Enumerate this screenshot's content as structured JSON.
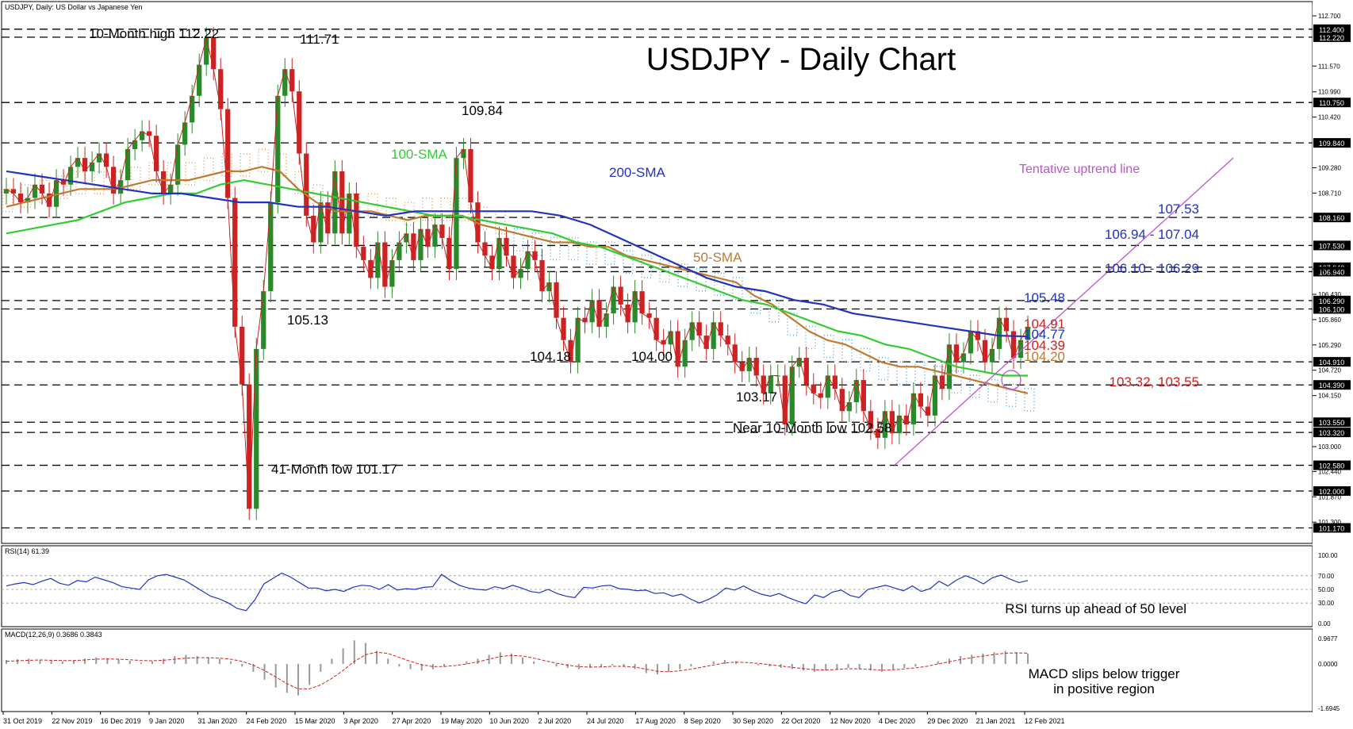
{
  "chart_data": {
    "type": "line",
    "header": {
      "main": "USDJPY, Daily:  US Dollar vs Japanese Yen",
      "rsi": "RSI(14) 61.39",
      "macd": "MACD(12,26,9) 0.3686 0.3843"
    },
    "title": "USDJPY - Daily Chart",
    "x_labels": [
      "31 Oct 2019",
      "22 Nov 2019",
      "16 Dec 2019",
      "9 Jan 2020",
      "31 Jan 2020",
      "24 Feb 2020",
      "15 Mar 2020",
      "3 Apr 2020",
      "27 Apr 2020",
      "19 May 2020",
      "10 Jun 2020",
      "2 Jul 2020",
      "24 Jul 2020",
      "17 Aug 2020",
      "8 Sep 2020",
      "30 Sep 2020",
      "22 Oct 2020",
      "12 Nov 2020",
      "4 Dec 2020",
      "29 Dec 2020",
      "21 Jan 2021",
      "12 Feb 2021"
    ],
    "price_axis": {
      "range": [
        101.0,
        112.7
      ],
      "ticks": [
        "112.700",
        "111.570",
        "110.990",
        "110.420",
        "109.280",
        "108.710",
        "107.000",
        "106.430",
        "105.860",
        "105.290",
        "104.720",
        "104.150",
        "103.000",
        "102.440",
        "101.870",
        "101.300"
      ]
    },
    "level_tags": [
      "112.400",
      "112.220",
      "110.750",
      "109.840",
      "108.160",
      "107.530",
      "107.040",
      "106.940",
      "106.290",
      "106.100",
      "104.910",
      "104.390",
      "103.550",
      "103.320",
      "102.580",
      "102.000",
      "101.170"
    ],
    "levels": [
      112.4,
      112.22,
      110.75,
      109.84,
      108.16,
      107.53,
      107.04,
      106.94,
      106.29,
      106.1,
      104.91,
      104.39,
      103.55,
      103.32,
      102.58,
      102.0,
      101.17
    ],
    "price_close": [
      108.8,
      108.7,
      108.5,
      108.6,
      108.9,
      108.7,
      108.4,
      109.0,
      108.9,
      109.3,
      109.5,
      109.2,
      109.4,
      109.6,
      109.3,
      108.7,
      109.0,
      109.7,
      109.9,
      110.1,
      110.0,
      109.2,
      108.7,
      108.9,
      109.8,
      110.3,
      110.9,
      111.6,
      112.2,
      111.5,
      110.6,
      108.6,
      105.7,
      104.4,
      101.6,
      105.2,
      106.5,
      108.5,
      110.9,
      111.5,
      111.0,
      109.6,
      108.2,
      107.6,
      108.5,
      107.8,
      109.2,
      107.8,
      108.7,
      107.5,
      107.2,
      106.8,
      107.6,
      106.6,
      107.2,
      107.6,
      107.8,
      107.2,
      107.9,
      107.5,
      108.0,
      107.7,
      107.0,
      109.5,
      109.7,
      108.5,
      107.6,
      107.3,
      107.0,
      107.7,
      107.3,
      106.8,
      107.0,
      107.4,
      107.2,
      106.5,
      106.7,
      105.9,
      105.4,
      104.9,
      105.9,
      105.8,
      106.3,
      105.7,
      106.0,
      106.6,
      106.2,
      105.8,
      106.5,
      106.0,
      105.9,
      105.4,
      105.3,
      105.6,
      104.8,
      105.4,
      105.8,
      105.5,
      105.2,
      105.8,
      105.5,
      105.3,
      104.9,
      104.7,
      105.0,
      104.6,
      104.2,
      104.6,
      104.6,
      103.5,
      104.8,
      105.0,
      104.4,
      104.2,
      104.1,
      104.6,
      104.3,
      103.8,
      104.0,
      104.5,
      103.8,
      103.4,
      103.2,
      103.8,
      103.3,
      103.7,
      103.5,
      104.2,
      103.9,
      103.7,
      104.6,
      104.3,
      105.3,
      104.9,
      105.1,
      105.6,
      105.4,
      104.9,
      105.2,
      105.9,
      105.6,
      105.0,
      105.4,
      105.7
    ],
    "series": [
      {
        "name": "50-SMA",
        "color": "#c07a30",
        "values": [
          108.4,
          108.5,
          108.6,
          108.7,
          108.8,
          108.8,
          108.8,
          108.9,
          109.0,
          109.0,
          109.0,
          109.1,
          109.2,
          109.2,
          109.3,
          109.2,
          108.8,
          108.5,
          108.3,
          108.3,
          108.3,
          108.2,
          108.1,
          108.2,
          108.2,
          108.2,
          108.0,
          107.9,
          107.8,
          107.7,
          107.6,
          107.6,
          107.5,
          107.5,
          107.3,
          107.2,
          107.1,
          107.0,
          106.9,
          106.8,
          106.7,
          106.4,
          106.2,
          105.9,
          105.6,
          105.4,
          105.3,
          105.1,
          104.9,
          104.8,
          104.8,
          104.7,
          104.6,
          104.5,
          104.4,
          104.3,
          104.2
        ]
      },
      {
        "name": "100-SMA",
        "color": "#33cc33",
        "values": [
          107.8,
          107.9,
          108.0,
          108.1,
          108.3,
          108.5,
          108.6,
          108.7,
          108.7,
          108.9,
          109.0,
          108.9,
          108.8,
          108.7,
          108.6,
          108.5,
          108.4,
          108.3,
          108.2,
          108.2,
          108.1,
          108.0,
          107.9,
          107.8,
          107.6,
          107.5,
          107.3,
          107.1,
          106.9,
          106.7,
          106.5,
          106.3,
          106.2,
          106.0,
          105.8,
          105.6,
          105.5,
          105.3,
          105.2,
          105.0,
          104.8,
          104.7,
          104.6,
          104.6
        ]
      },
      {
        "name": "200-SMA",
        "color": "#2233bb",
        "values": [
          109.2,
          109.1,
          109.0,
          108.9,
          108.8,
          108.7,
          108.7,
          108.6,
          108.5,
          108.5,
          108.4,
          108.4,
          108.3,
          108.2,
          108.3,
          108.3,
          108.3,
          108.3,
          108.3,
          108.2,
          108.0,
          107.7,
          107.4,
          107.1,
          106.8,
          106.6,
          106.5,
          106.3,
          106.2,
          106.0,
          105.9,
          105.8,
          105.7,
          105.6,
          105.5,
          105.48
        ]
      }
    ],
    "annotations": [
      {
        "text": "10-Month high 112.22"
      },
      {
        "text": "111.71"
      },
      {
        "text": "109.84"
      },
      {
        "text": "105.13"
      },
      {
        "text": "104.18"
      },
      {
        "text": "104.00"
      },
      {
        "text": "103.17"
      },
      {
        "text": "Near 10-Month low 102.58"
      },
      {
        "text": "41-Month low 101.17"
      },
      {
        "text": "100-SMA",
        "color": "#33cc33"
      },
      {
        "text": "200-SMA",
        "color": "#2233bb"
      },
      {
        "text": "50-SMA",
        "color": "#c07a30"
      },
      {
        "text": "Tentative uptrend line",
        "color": "#bb55cc"
      },
      {
        "text": "107.53",
        "color": "#2233bb"
      },
      {
        "text": "106.94 - 107.04",
        "color": "#2233bb"
      },
      {
        "text": "106.10 - 106.29",
        "color": "#2233bb"
      },
      {
        "text": "105.48",
        "color": "#2233bb"
      },
      {
        "text": "104.91",
        "color": "#cc2222"
      },
      {
        "text": "104.77",
        "color": "#2233bb"
      },
      {
        "text": "104.39",
        "color": "#cc2222"
      },
      {
        "text": "104.20",
        "color": "#c07a30"
      },
      {
        "text": "103.32, 103.55",
        "color": "#cc2222"
      }
    ],
    "rsi": {
      "range": [
        0,
        100
      ],
      "ticks": [
        "100.00",
        "70.00",
        "50.00",
        "30.00",
        "0.00"
      ],
      "values": [
        55,
        58,
        60,
        57,
        62,
        66,
        59,
        56,
        63,
        61,
        68,
        64,
        60,
        54,
        52,
        50,
        64,
        70,
        72,
        68,
        64,
        56,
        48,
        40,
        36,
        30,
        22,
        19,
        35,
        58,
        66,
        74,
        68,
        60,
        52,
        52,
        48,
        50,
        47,
        53,
        56,
        55,
        50,
        57,
        49,
        51,
        50,
        53,
        54,
        72,
        63,
        56,
        52,
        50,
        49,
        54,
        51,
        56,
        52,
        47,
        45,
        50,
        44,
        40,
        38,
        53,
        52,
        55,
        56,
        51,
        50,
        48,
        49,
        44,
        45,
        40,
        43,
        36,
        30,
        35,
        42,
        52,
        49,
        55,
        48,
        43,
        40,
        44,
        38,
        33,
        29,
        42,
        38,
        46,
        49,
        41,
        38,
        50,
        53,
        56,
        52,
        48,
        55,
        47,
        51,
        62,
        55,
        64,
        70,
        65,
        58,
        67,
        71,
        65,
        60,
        63
      ],
      "annotation": "RSI turns up ahead of 50 level"
    },
    "macd": {
      "range": [
        -1.6945,
        0.9677
      ],
      "ticks": [
        "0.9677",
        "0.0000",
        "-1.6945"
      ],
      "histogram": [
        0.15,
        0.18,
        0.2,
        0.16,
        0.12,
        0.1,
        0.14,
        0.2,
        0.25,
        0.22,
        0.18,
        0.12,
        0.05,
        0.1,
        0.2,
        0.3,
        0.35,
        0.3,
        0.25,
        0.2,
        0.1,
        -0.1,
        -0.3,
        -0.6,
        -0.9,
        -1.1,
        -1.2,
        -0.8,
        -0.3,
        0.2,
        0.6,
        0.9,
        0.8,
        0.5,
        0.2,
        -0.1,
        -0.2,
        -0.25,
        -0.2,
        -0.1,
        0.0,
        0.1,
        0.2,
        0.35,
        0.45,
        0.4,
        0.25,
        0.1,
        0.0,
        -0.1,
        -0.15,
        -0.2,
        -0.15,
        -0.1,
        -0.05,
        -0.1,
        -0.2,
        -0.35,
        -0.4,
        -0.3,
        -0.2,
        -0.1,
        0.0,
        0.1,
        0.15,
        0.1,
        0.0,
        -0.05,
        -0.1,
        -0.15,
        -0.2,
        -0.25,
        -0.3,
        -0.25,
        -0.2,
        -0.15,
        -0.2,
        -0.25,
        -0.3,
        -0.2,
        -0.15,
        -0.1,
        0.0,
        0.1,
        0.2,
        0.3,
        0.35,
        0.4,
        0.45,
        0.5,
        0.45,
        0.4
      ],
      "signal": [
        0.1,
        0.12,
        0.14,
        0.15,
        0.14,
        0.13,
        0.13,
        0.15,
        0.18,
        0.19,
        0.18,
        0.16,
        0.13,
        0.12,
        0.14,
        0.18,
        0.22,
        0.24,
        0.24,
        0.22,
        0.18,
        0.1,
        -0.05,
        -0.25,
        -0.5,
        -0.75,
        -0.95,
        -0.95,
        -0.8,
        -0.55,
        -0.25,
        0.1,
        0.35,
        0.45,
        0.4,
        0.25,
        0.1,
        -0.03,
        -0.1,
        -0.1,
        -0.06,
        0.0,
        0.08,
        0.18,
        0.28,
        0.33,
        0.3,
        0.22,
        0.12,
        0.03,
        -0.05,
        -0.1,
        -0.12,
        -0.11,
        -0.09,
        -0.09,
        -0.12,
        -0.2,
        -0.28,
        -0.3,
        -0.26,
        -0.2,
        -0.12,
        -0.04,
        0.04,
        0.07,
        0.05,
        0.02,
        -0.03,
        -0.08,
        -0.13,
        -0.18,
        -0.22,
        -0.23,
        -0.21,
        -0.18,
        -0.19,
        -0.21,
        -0.24,
        -0.22,
        -0.19,
        -0.15,
        -0.09,
        0.0,
        0.08,
        0.17,
        0.24,
        0.3,
        0.36,
        0.41,
        0.42,
        0.41
      ],
      "annotation_lines": [
        "MACD slips below trigger",
        "in positive region"
      ]
    }
  }
}
